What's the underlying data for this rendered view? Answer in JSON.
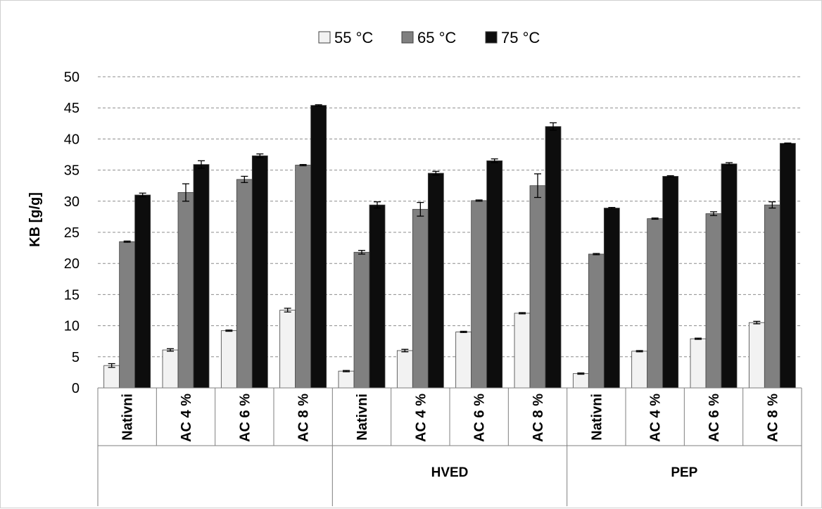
{
  "chart_data": {
    "type": "bar",
    "title": "",
    "xlabel": "",
    "ylabel": "KB [g/g]",
    "ylim": [
      0,
      50
    ],
    "yticks": [
      0,
      5,
      10,
      15,
      20,
      25,
      30,
      35,
      40,
      45,
      50
    ],
    "grid": true,
    "legend_position": "top-center",
    "groups": [
      {
        "label": "",
        "categories": [
          "Nativni",
          "AC 4 %",
          "AC 6 %",
          "AC 8 %"
        ]
      },
      {
        "label": "HVED",
        "categories": [
          "Nativni",
          "AC 4 %",
          "AC 6 %",
          "AC 8 %"
        ]
      },
      {
        "label": "PEP",
        "categories": [
          "Nativni",
          "AC 4 %",
          "AC 6 %",
          "AC 8 %"
        ]
      }
    ],
    "series": [
      {
        "name": "55 °C",
        "color": "#f2f2f2",
        "values": [
          3.6,
          6.1,
          9.2,
          12.5,
          2.7,
          6.0,
          9.0,
          12.0,
          2.3,
          5.9,
          7.9,
          10.5
        ],
        "errors": [
          0.3,
          0.2,
          0.1,
          0.3,
          0.1,
          0.2,
          0.1,
          0.1,
          0.1,
          0.1,
          0.1,
          0.2
        ]
      },
      {
        "name": "65 °C",
        "color": "#808080",
        "values": [
          23.5,
          31.4,
          33.5,
          35.8,
          21.8,
          28.7,
          30.1,
          32.5,
          21.5,
          27.2,
          28.0,
          29.4
        ],
        "errors": [
          0.1,
          1.4,
          0.5,
          0.1,
          0.3,
          1.1,
          0.1,
          1.9,
          0.1,
          0.1,
          0.3,
          0.5
        ]
      },
      {
        "name": "75 °C",
        "color": "#0d0d0d",
        "values": [
          31.0,
          35.9,
          37.3,
          45.4,
          29.4,
          34.5,
          36.5,
          42.0,
          28.9,
          34.0,
          36.0,
          39.3
        ],
        "errors": [
          0.3,
          0.6,
          0.3,
          0.1,
          0.5,
          0.3,
          0.3,
          0.6,
          0.1,
          0.1,
          0.2,
          0.05
        ]
      }
    ]
  }
}
